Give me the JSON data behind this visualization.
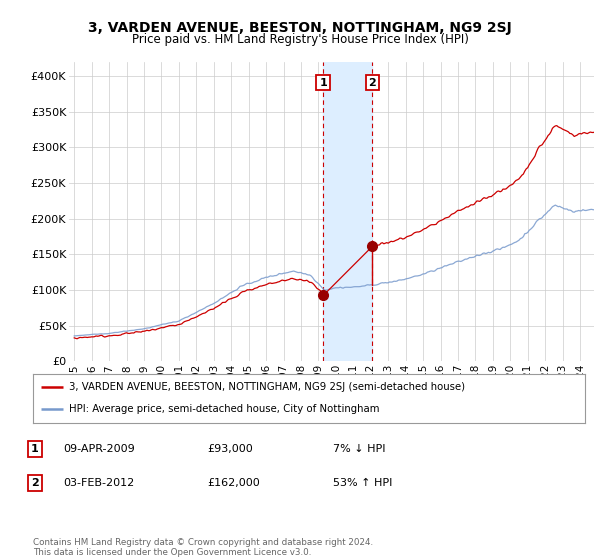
{
  "title": "3, VARDEN AVENUE, BEESTON, NOTTINGHAM, NG9 2SJ",
  "subtitle": "Price paid vs. HM Land Registry's House Price Index (HPI)",
  "ylabel_ticks": [
    "£0",
    "£50K",
    "£100K",
    "£150K",
    "£200K",
    "£250K",
    "£300K",
    "£350K",
    "£400K"
  ],
  "ytick_values": [
    0,
    50000,
    100000,
    150000,
    200000,
    250000,
    300000,
    350000,
    400000
  ],
  "ylim": [
    0,
    420000
  ],
  "xlim_start": 1994.7,
  "xlim_end": 2024.8,
  "xticks": [
    1995,
    1996,
    1997,
    1998,
    1999,
    2000,
    2001,
    2002,
    2003,
    2004,
    2005,
    2006,
    2007,
    2008,
    2009,
    2010,
    2011,
    2012,
    2013,
    2014,
    2015,
    2016,
    2017,
    2018,
    2019,
    2020,
    2021,
    2022,
    2023,
    2024
  ],
  "transaction1_x": 2009.27,
  "transaction1_price": 93000,
  "transaction2_x": 2012.09,
  "transaction2_price": 162000,
  "shaded_color": "#ddeeff",
  "line_color_red": "#cc0000",
  "line_color_blue": "#7799cc",
  "grid_color": "#cccccc",
  "bg_color": "#ffffff",
  "legend_line1": "3, VARDEN AVENUE, BEESTON, NOTTINGHAM, NG9 2SJ (semi-detached house)",
  "legend_line2": "HPI: Average price, semi-detached house, City of Nottingham",
  "table_rows": [
    {
      "num": "1",
      "date": "09-APR-2009",
      "price": "£93,000",
      "pct": "7% ↓ HPI"
    },
    {
      "num": "2",
      "date": "03-FEB-2012",
      "price": "£162,000",
      "pct": "53% ↑ HPI"
    }
  ],
  "footer": "Contains HM Land Registry data © Crown copyright and database right 2024.\nThis data is licensed under the Open Government Licence v3.0."
}
